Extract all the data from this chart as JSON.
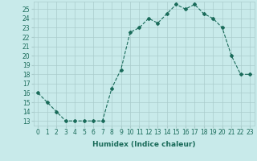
{
  "x": [
    0,
    1,
    2,
    3,
    4,
    5,
    6,
    7,
    8,
    9,
    10,
    11,
    12,
    13,
    14,
    15,
    16,
    17,
    18,
    19,
    20,
    21,
    22,
    23
  ],
  "y": [
    16,
    15,
    14,
    13,
    13,
    13,
    13,
    13,
    16.5,
    18.5,
    22.5,
    23,
    24,
    23.5,
    24.5,
    25.5,
    25,
    25.5,
    24.5,
    24,
    23,
    20,
    18,
    18
  ],
  "line_color": "#1a6b5a",
  "marker": "D",
  "marker_size": 2,
  "bg_color": "#c8eaea",
  "grid_color": "#aacccc",
  "xlabel": "Humidex (Indice chaleur)",
  "ylabel": "",
  "xlim": [
    -0.5,
    23.5
  ],
  "ylim": [
    12.5,
    25.8
  ],
  "yticks": [
    13,
    14,
    15,
    16,
    17,
    18,
    19,
    20,
    21,
    22,
    23,
    24,
    25
  ],
  "xticks": [
    0,
    1,
    2,
    3,
    4,
    5,
    6,
    7,
    8,
    9,
    10,
    11,
    12,
    13,
    14,
    15,
    16,
    17,
    18,
    19,
    20,
    21,
    22,
    23
  ],
  "label_fontsize": 6.5,
  "tick_fontsize": 5.5
}
